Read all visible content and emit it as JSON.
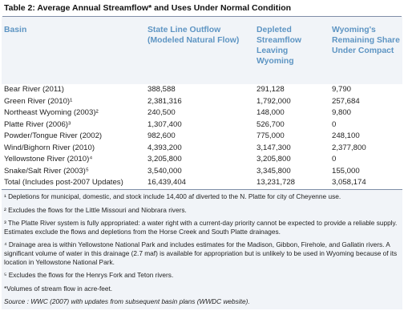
{
  "title": "Table 2: Average Annual Streamflow* and Uses Under Normal Condition",
  "columns": {
    "basin": "Basin",
    "state_line": "State Line Outflow (Modeled Natural Flow)",
    "depleted": "Depleted Streamflow Leaving Wyoming",
    "remaining": "Wyoming's Remaining Share Under Compact"
  },
  "rows": [
    {
      "basin": "Bear River (2011)",
      "state_line": "388,588",
      "depleted": "291,128",
      "remaining": "9,790"
    },
    {
      "basin": "Green River (2010)¹",
      "state_line": "2,381,316",
      "depleted": "1,792,000",
      "remaining": "257,684"
    },
    {
      "basin": "Northeast Wyoming (2003)²",
      "state_line": "240,500",
      "depleted": "148,000",
      "remaining": "9,800"
    },
    {
      "basin": "Platte River (2006)³",
      "state_line": "1,307,400",
      "depleted": "526,700",
      "remaining": "0"
    },
    {
      "basin": "Powder/Tongue River (2002)",
      "state_line": "982,600",
      "depleted": "775,000",
      "remaining": "248,100"
    },
    {
      "basin": "Wind/Bighorn River (2010)",
      "state_line": "4,393,200",
      "depleted": "3,147,300",
      "remaining": "2,377,800"
    },
    {
      "basin": "Yellowstone River (2010)⁴",
      "state_line": "3,205,800",
      "depleted": "3,205,800",
      "remaining": "0"
    },
    {
      "basin": "Snake/Salt River (2003)⁵",
      "state_line": "3,540,000",
      "depleted": "3,345,800",
      "remaining": "155,000"
    }
  ],
  "total": {
    "basin": "Total (Includes post-2007 Updates)",
    "state_line": "16,439,404",
    "depleted": "13,231,728",
    "remaining": "3,058,174"
  },
  "notes": {
    "n1": "¹ Depletions for municipal, domestic, and stock include 14,400 af diverted to the N. Platte for city of Cheyenne use.",
    "n2": "² Excludes the flows for the Little Missouri and Niobrara rivers.",
    "n3": "³ The Platte River system is fully appropriated: a water right with a current-day priority cannot be expected to provide a reliable supply. Estimates exclude the flows and depletions from the Horse Creek and South Platte drainages.",
    "n4": "⁴ Drainage area is within Yellowstone National Park and includes estimates for the Madison, Gibbon, Firehole, and Gallatin rivers. A significant volume of water in this drainage (2.7 maf) is available for appropriation but is unlikely to be used in Wyoming because of its location in Yellowstone National Park.",
    "n5": "⁵ Excludes the flows for the Henrys Fork and Teton rivers.",
    "star": "*Volumes of stream flow in acre-feet.",
    "source": "Source : WWC (2007) with updates from subsequent basin plans (WWDC website)."
  }
}
